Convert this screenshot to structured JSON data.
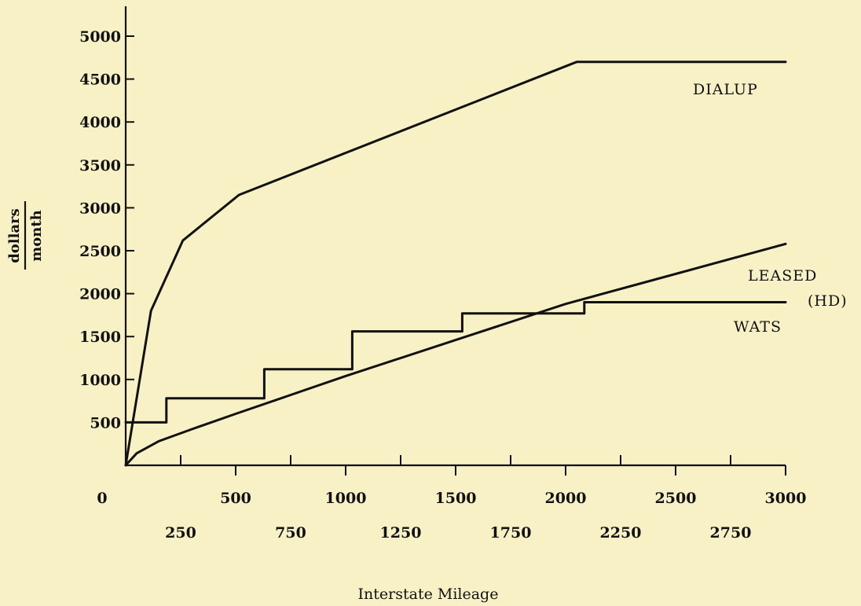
{
  "chart_data": {
    "type": "line",
    "title": "",
    "xlabel": "Interstate Mileage",
    "ylabel_numerator": "dollars",
    "ylabel_denominator": "month",
    "xlim": [
      0,
      3000
    ],
    "ylim": [
      0,
      5000
    ],
    "x_ticks_upper": [
      "500",
      "1000",
      "1500",
      "2000",
      "2500",
      "3000"
    ],
    "x_ticks_lower": [
      "250",
      "750",
      "1250",
      "1750",
      "2250",
      "2750"
    ],
    "x_origin_label": "0",
    "y_ticks": [
      "500",
      "1000",
      "1500",
      "2000",
      "2500",
      "3000",
      "3500",
      "4000",
      "4500",
      "5000"
    ],
    "series": [
      {
        "name": "DIALUP",
        "points": [
          [
            0,
            0
          ],
          [
            115,
            1800
          ],
          [
            260,
            2620
          ],
          [
            515,
            3150
          ],
          [
            2050,
            4700
          ],
          [
            3000,
            4700
          ]
        ]
      },
      {
        "name": "LEASED (HD)",
        "points": [
          [
            0,
            0
          ],
          [
            50,
            140
          ],
          [
            150,
            280
          ],
          [
            300,
            420
          ],
          [
            500,
            600
          ],
          [
            750,
            820
          ],
          [
            1000,
            1040
          ],
          [
            1500,
            1460
          ],
          [
            2000,
            1880
          ],
          [
            2500,
            2230
          ],
          [
            3000,
            2580
          ]
        ]
      },
      {
        "name": "WATS",
        "points": [
          [
            0,
            500
          ],
          [
            185,
            500
          ],
          [
            185,
            780
          ],
          [
            630,
            780
          ],
          [
            630,
            1120
          ],
          [
            1030,
            1120
          ],
          [
            1030,
            1560
          ],
          [
            1530,
            1560
          ],
          [
            1530,
            1770
          ],
          [
            2085,
            1770
          ],
          [
            2085,
            1900
          ],
          [
            3000,
            1900
          ]
        ]
      }
    ],
    "annotations": [
      "DIALUP",
      "LEASED",
      "(HD)",
      "WATS"
    ],
    "grid": false
  }
}
